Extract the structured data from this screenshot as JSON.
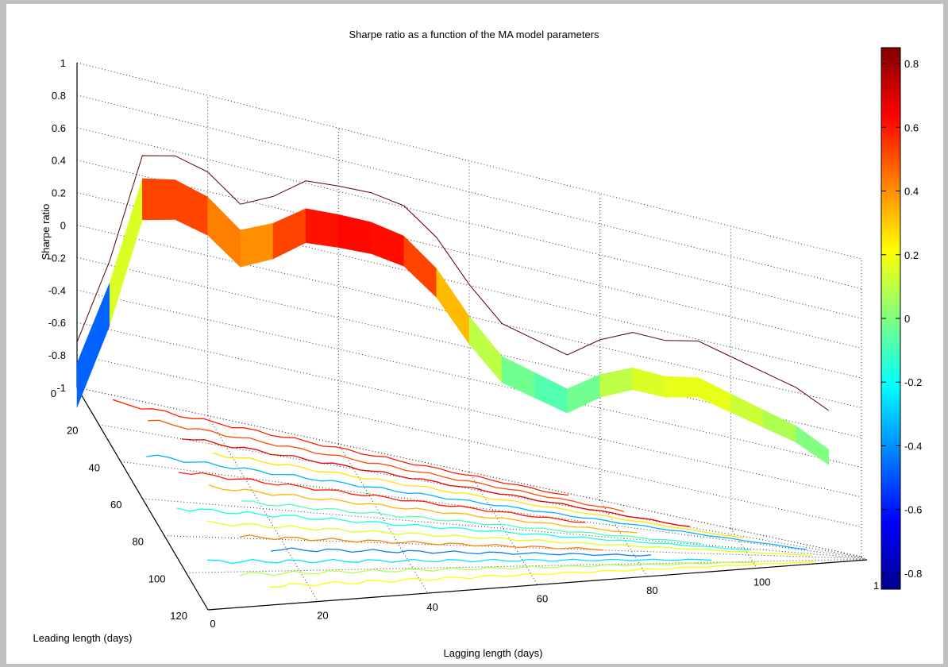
{
  "chart_data": {
    "type": "surface",
    "title": "Sharpe ratio as a function of the MA model parameters",
    "xlabel": "Lagging length (days)",
    "ylabel": "Leading length (days)",
    "zlabel": "Sharpe ratio",
    "x_ticks": [
      0,
      20,
      40,
      60,
      80,
      100
    ],
    "y_ticks": [
      0,
      20,
      40,
      60,
      80,
      100,
      120
    ],
    "z_ticks": [
      -1,
      -0.8,
      -0.6,
      -0.4,
      -0.2,
      0,
      0.2,
      0.4,
      0.6,
      0.8,
      1
    ],
    "xlim": [
      0,
      120
    ],
    "ylim": [
      0,
      120
    ],
    "zlim": [
      -1,
      1
    ],
    "grid": true,
    "colormap": "jet",
    "colorbar": {
      "range": [
        -0.85,
        0.85
      ],
      "ticks": [
        -0.8,
        -0.6,
        -0.4,
        -0.2,
        0,
        0.2,
        0.4,
        0.6,
        0.8
      ],
      "tick_labels": [
        "-0.8",
        "-0.6",
        "-0.4",
        "-0.2",
        "0",
        "0.2",
        "0.4",
        "0.6",
        "0.8"
      ],
      "position": "right"
    },
    "sharpe_along_lagging_length": {
      "lagging_length_days": [
        0,
        5,
        10,
        15,
        20,
        25,
        30,
        35,
        40,
        45,
        50,
        55,
        60,
        65,
        70,
        75,
        80,
        85,
        90,
        95,
        100,
        105,
        110,
        115
      ],
      "sharpe_ratio": [
        -0.75,
        -0.2,
        0.5,
        0.55,
        0.5,
        0.35,
        0.45,
        0.6,
        0.62,
        0.63,
        0.6,
        0.45,
        0.2,
        0.0,
        -0.05,
        -0.1,
        0.05,
        0.15,
        0.15,
        0.2,
        0.15,
        0.1,
        0.05,
        -0.05
      ]
    },
    "contours": "jet-colored contour lines on the floor (z = -1 plane)",
    "axis_extra_tick": "1"
  }
}
